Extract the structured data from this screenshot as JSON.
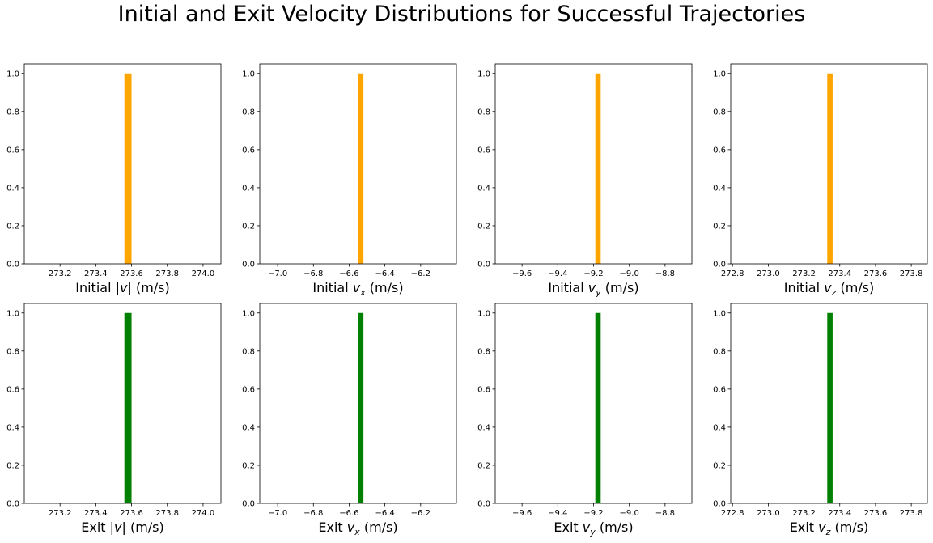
{
  "title": "Initial and Exit Velocity Distributions for Successful Trajectories",
  "colors": {
    "initial": "#ffa500",
    "exit": "#008000"
  },
  "chart_data": [
    {
      "type": "bar",
      "row": "initial",
      "xlabel_prefix": "Initial ",
      "xlabel_math": "|v|",
      "xlabel_sub": "",
      "xlabel_suffix": " (m/s)",
      "xlim": [
        273.0,
        274.1
      ],
      "ylim": [
        0,
        1.05
      ],
      "xticks": [
        273.2,
        273.4,
        273.6,
        273.8,
        274.0
      ],
      "xtick_labels": [
        "273.2",
        "273.4",
        "273.6",
        "273.8",
        "274.0"
      ],
      "yticks": [
        0,
        0.2,
        0.4,
        0.6,
        0.8,
        1.0
      ],
      "ytick_labels": [
        "0.0",
        "0.2",
        "0.4",
        "0.6",
        "0.8",
        "1.0"
      ],
      "bins": [
        {
          "x0": 273.56,
          "x1": 273.6,
          "value": 1.0
        }
      ]
    },
    {
      "type": "bar",
      "row": "initial",
      "xlabel_prefix": "Initial ",
      "xlabel_math": "v",
      "xlabel_sub": "x",
      "xlabel_suffix": " (m/s)",
      "xlim": [
        -7.1,
        -6.0
      ],
      "ylim": [
        0,
        1.05
      ],
      "xticks": [
        -7.0,
        -6.8,
        -6.6,
        -6.4,
        -6.2
      ],
      "xtick_labels": [
        "−7.0",
        "−6.8",
        "−6.6",
        "−6.4",
        "−6.2"
      ],
      "yticks": [
        0,
        0.2,
        0.4,
        0.6,
        0.8,
        1.0
      ],
      "ytick_labels": [
        "0.0",
        "0.2",
        "0.4",
        "0.6",
        "0.8",
        "1.0"
      ],
      "bins": [
        {
          "x0": -6.55,
          "x1": -6.52,
          "value": 1.0
        }
      ]
    },
    {
      "type": "bar",
      "row": "initial",
      "xlabel_prefix": "Initial ",
      "xlabel_math": "v",
      "xlabel_sub": "y",
      "xlabel_suffix": " (m/s)",
      "xlim": [
        -9.75,
        -8.65
      ],
      "ylim": [
        0,
        1.05
      ],
      "xticks": [
        -9.6,
        -9.4,
        -9.2,
        -9.0,
        -8.8
      ],
      "xtick_labels": [
        "−9.6",
        "−9.4",
        "−9.2",
        "−9.0",
        "−8.8"
      ],
      "yticks": [
        0,
        0.2,
        0.4,
        0.6,
        0.8,
        1.0
      ],
      "ytick_labels": [
        "0.0",
        "0.2",
        "0.4",
        "0.6",
        "0.8",
        "1.0"
      ],
      "bins": [
        {
          "x0": -9.19,
          "x1": -9.16,
          "value": 1.0
        }
      ]
    },
    {
      "type": "bar",
      "row": "initial",
      "xlabel_prefix": "Initial ",
      "xlabel_math": "v",
      "xlabel_sub": "z",
      "xlabel_suffix": " (m/s)",
      "xlim": [
        272.79,
        273.89
      ],
      "ylim": [
        0,
        1.05
      ],
      "xticks": [
        272.8,
        273.0,
        273.2,
        273.4,
        273.6,
        273.8
      ],
      "xtick_labels": [
        "272.8",
        "273.0",
        "273.2",
        "273.4",
        "273.6",
        "273.8"
      ],
      "yticks": [
        0,
        0.2,
        0.4,
        0.6,
        0.8,
        1.0
      ],
      "ytick_labels": [
        "0.0",
        "0.2",
        "0.4",
        "0.6",
        "0.8",
        "1.0"
      ],
      "bins": [
        {
          "x0": 273.33,
          "x1": 273.36,
          "value": 1.0
        }
      ]
    },
    {
      "type": "bar",
      "row": "exit",
      "xlabel_prefix": "Exit ",
      "xlabel_math": "|v|",
      "xlabel_sub": "",
      "xlabel_suffix": " (m/s)",
      "xlim": [
        273.0,
        274.1
      ],
      "ylim": [
        0,
        1.05
      ],
      "xticks": [
        273.2,
        273.4,
        273.6,
        273.8,
        274.0
      ],
      "xtick_labels": [
        "273.2",
        "273.4",
        "273.6",
        "273.8",
        "274.0"
      ],
      "yticks": [
        0,
        0.2,
        0.4,
        0.6,
        0.8,
        1.0
      ],
      "ytick_labels": [
        "0.0",
        "0.2",
        "0.4",
        "0.6",
        "0.8",
        "1.0"
      ],
      "bins": [
        {
          "x0": 273.56,
          "x1": 273.6,
          "value": 1.0
        }
      ]
    },
    {
      "type": "bar",
      "row": "exit",
      "xlabel_prefix": "Exit ",
      "xlabel_math": "v",
      "xlabel_sub": "x",
      "xlabel_suffix": " (m/s)",
      "xlim": [
        -7.1,
        -6.0
      ],
      "ylim": [
        0,
        1.05
      ],
      "xticks": [
        -7.0,
        -6.8,
        -6.6,
        -6.4,
        -6.2
      ],
      "xtick_labels": [
        "−7.0",
        "−6.8",
        "−6.6",
        "−6.4",
        "−6.2"
      ],
      "yticks": [
        0,
        0.2,
        0.4,
        0.6,
        0.8,
        1.0
      ],
      "ytick_labels": [
        "0.0",
        "0.2",
        "0.4",
        "0.6",
        "0.8",
        "1.0"
      ],
      "bins": [
        {
          "x0": -6.55,
          "x1": -6.52,
          "value": 1.0
        }
      ]
    },
    {
      "type": "bar",
      "row": "exit",
      "xlabel_prefix": "Exit ",
      "xlabel_math": "v",
      "xlabel_sub": "y",
      "xlabel_suffix": " (m/s)",
      "xlim": [
        -9.75,
        -8.65
      ],
      "ylim": [
        0,
        1.05
      ],
      "xticks": [
        -9.6,
        -9.4,
        -9.2,
        -9.0,
        -8.8
      ],
      "xtick_labels": [
        "−9.6",
        "−9.4",
        "−9.2",
        "−9.0",
        "−8.8"
      ],
      "yticks": [
        0,
        0.2,
        0.4,
        0.6,
        0.8,
        1.0
      ],
      "ytick_labels": [
        "0.0",
        "0.2",
        "0.4",
        "0.6",
        "0.8",
        "1.0"
      ],
      "bins": [
        {
          "x0": -9.19,
          "x1": -9.16,
          "value": 1.0
        }
      ]
    },
    {
      "type": "bar",
      "row": "exit",
      "xlabel_prefix": "Exit ",
      "xlabel_math": "v",
      "xlabel_sub": "z",
      "xlabel_suffix": " (m/s)",
      "xlim": [
        272.79,
        273.89
      ],
      "ylim": [
        0,
        1.05
      ],
      "xticks": [
        272.8,
        273.0,
        273.2,
        273.4,
        273.6,
        273.8
      ],
      "xtick_labels": [
        "272.8",
        "273.0",
        "273.2",
        "273.4",
        "273.6",
        "273.8"
      ],
      "yticks": [
        0,
        0.2,
        0.4,
        0.6,
        0.8,
        1.0
      ],
      "ytick_labels": [
        "0.0",
        "0.2",
        "0.4",
        "0.6",
        "0.8",
        "1.0"
      ],
      "bins": [
        {
          "x0": 273.33,
          "x1": 273.36,
          "value": 1.0
        }
      ]
    }
  ]
}
